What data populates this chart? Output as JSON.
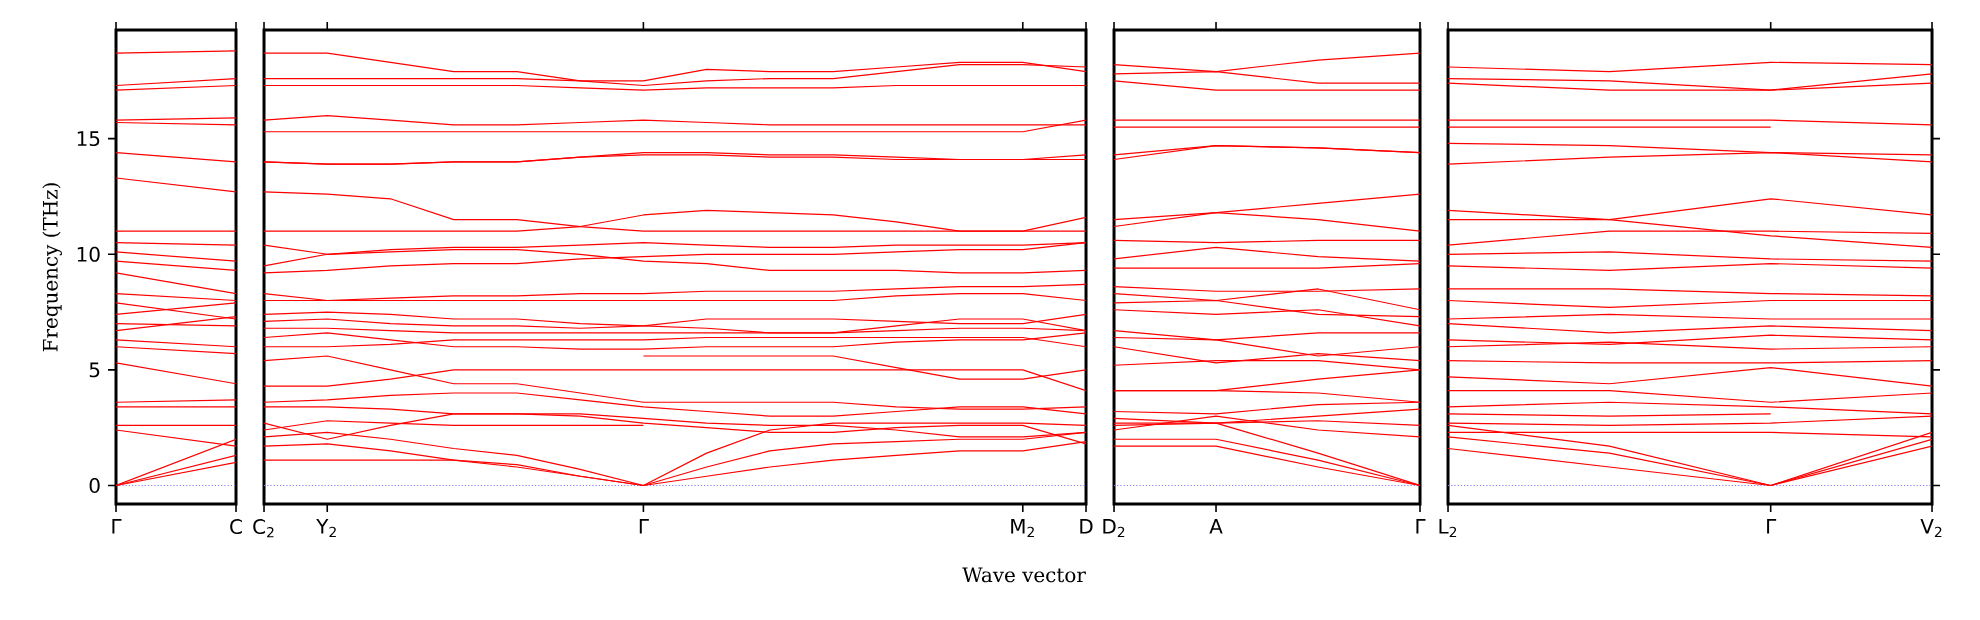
{
  "chart_data": [
    {
      "type": "line",
      "ylabel": "Frequency (THz)",
      "categories": [
        "Γ",
        "C"
      ],
      "ylim": [
        -0.8,
        19.7
      ],
      "yticks": [
        0,
        5,
        10,
        15
      ],
      "ref_lines": [
        {
          "axis": "y",
          "value": 0,
          "color": "#8080ff",
          "line_style": "dotted"
        }
      ],
      "series": [
        {
          "color": "#ff0000",
          "values": [
            18.7,
            18.8
          ]
        },
        {
          "color": "#ff0000",
          "values": [
            17.3,
            17.6
          ]
        },
        {
          "color": "#ff0000",
          "values": [
            17.1,
            17.3
          ]
        },
        {
          "color": "#ff0000",
          "values": [
            15.8,
            15.9
          ]
        },
        {
          "color": "#ff0000",
          "values": [
            15.7,
            15.6
          ]
        },
        {
          "color": "#ff0000",
          "values": [
            14.4,
            14.0
          ]
        },
        {
          "color": "#ff0000",
          "values": [
            13.3,
            12.7
          ]
        },
        {
          "color": "#ff0000",
          "values": [
            11.0,
            11.0
          ]
        },
        {
          "color": "#ff0000",
          "values": [
            10.5,
            10.4
          ]
        },
        {
          "color": "#ff0000",
          "values": [
            10.1,
            9.7
          ]
        },
        {
          "color": "#ff0000",
          "values": [
            9.7,
            9.3
          ]
        },
        {
          "color": "#ff0000",
          "values": [
            9.2,
            8.3
          ]
        },
        {
          "color": "#ff0000",
          "values": [
            8.3,
            8.0
          ]
        },
        {
          "color": "#ff0000",
          "values": [
            7.9,
            7.2
          ]
        },
        {
          "color": "#ff0000",
          "values": [
            7.4,
            7.9
          ]
        },
        {
          "color": "#ff0000",
          "values": [
            7.0,
            6.9
          ]
        },
        {
          "color": "#ff0000",
          "values": [
            6.7,
            7.3
          ]
        },
        {
          "color": "#ff0000",
          "values": [
            6.3,
            6.0
          ]
        },
        {
          "color": "#ff0000",
          "values": [
            6.0,
            5.7
          ]
        },
        {
          "color": "#ff0000",
          "values": [
            5.3,
            4.4
          ]
        },
        {
          "color": "#ff0000",
          "values": [
            3.6,
            3.7
          ]
        },
        {
          "color": "#ff0000",
          "values": [
            3.4,
            3.4
          ]
        },
        {
          "color": "#ff0000",
          "values": [
            2.6,
            2.6
          ]
        },
        {
          "color": "#ff0000",
          "values": [
            2.4,
            1.7
          ]
        },
        {
          "color": "#ff0000",
          "values": [
            0,
            2.0
          ]
        },
        {
          "color": "#ff0000",
          "values": [
            0,
            1.3
          ]
        },
        {
          "color": "#ff0000",
          "values": [
            0,
            1.0
          ]
        }
      ]
    },
    {
      "type": "line",
      "xlabel": "Wave vector",
      "tick_labels": "x",
      "categories": [
        "C$_{2}$",
        "Y$_{2}$",
        null,
        null,
        null,
        null,
        "Γ",
        null,
        null,
        null,
        null,
        null,
        "M$_{2}$",
        "D"
      ],
      "ylim": [
        -0.8,
        19.7
      ],
      "yticks": [
        0,
        5,
        10,
        15
      ],
      "ref_lines": [
        {
          "axis": "y",
          "value": 0,
          "color": "#8080ff",
          "line_style": "dotted"
        }
      ],
      "series": [
        {
          "color": "#ff0000",
          "values": [
            18.7,
            18.7,
            18.3,
            17.9,
            17.9,
            17.5,
            17.5,
            18.0,
            17.9,
            17.9,
            18.1,
            18.3,
            18.3,
            17.9
          ]
        },
        {
          "color": "#ff0000",
          "values": [
            17.6,
            17.6,
            17.6,
            17.6,
            17.6,
            17.5,
            17.3,
            17.5,
            17.6,
            17.6,
            17.9,
            18.2,
            18.2,
            18.1
          ]
        },
        {
          "color": "#ff0000",
          "values": [
            17.3,
            17.3,
            17.3,
            17.3,
            17.3,
            17.2,
            17.1,
            17.2,
            17.2,
            17.2,
            17.3,
            17.3,
            17.3,
            17.3
          ]
        },
        {
          "color": "#ff0000",
          "values": [
            15.8,
            16.0,
            15.8,
            15.6,
            15.6,
            15.7,
            15.8,
            15.7,
            15.6,
            15.6,
            15.6,
            15.6,
            15.6,
            15.6
          ]
        },
        {
          "color": "#ff0000",
          "values": [
            15.3,
            15.3,
            15.3,
            15.3,
            15.3,
            15.3,
            15.3,
            15.3,
            15.3,
            15.3,
            15.3,
            15.3,
            15.3,
            15.8
          ]
        },
        {
          "color": "#ff0000",
          "values": [
            14.0,
            13.9,
            13.9,
            14.0,
            14.0,
            14.2,
            14.4,
            14.4,
            14.3,
            14.3,
            14.2,
            14.1,
            14.1,
            14.3
          ]
        },
        {
          "color": "#ff0000",
          "values": [
            14.0,
            13.9,
            13.9,
            14.0,
            14.0,
            14.2,
            14.3,
            14.3,
            14.2,
            14.2,
            14.1,
            14.1,
            14.1,
            14.1
          ]
        },
        {
          "color": "#ff0000",
          "values": [
            11.0,
            11.0,
            11.0,
            11.0,
            11.0,
            11.2,
            11.7,
            11.9,
            11.8,
            11.7,
            11.4,
            11.0,
            11.0,
            11.6
          ]
        },
        {
          "color": "#ff0000",
          "values": [
            12.7,
            12.6,
            12.4,
            11.5,
            11.5,
            11.2,
            11.0,
            11.0,
            11.0,
            11.0,
            11.0,
            11.0,
            11.0,
            11.0
          ]
        },
        {
          "color": "#ff0000",
          "values": [
            10.4,
            10.0,
            10.2,
            10.3,
            10.3,
            10.4,
            10.5,
            10.4,
            10.3,
            10.3,
            10.4,
            10.4,
            10.4,
            10.5
          ]
        },
        {
          "color": "#ff0000",
          "values": [
            9.2,
            9.3,
            9.5,
            9.6,
            9.6,
            9.8,
            9.9,
            10.0,
            10.0,
            10.0,
            10.1,
            10.2,
            10.2,
            10.5
          ]
        },
        {
          "color": "#ff0000",
          "values": [
            9.5,
            10.0,
            10.1,
            10.2,
            10.2,
            10.0,
            9.7,
            9.6,
            9.3,
            9.3,
            9.3,
            9.2,
            9.2,
            9.3
          ]
        },
        {
          "color": "#ff0000",
          "values": [
            8.3,
            8.0,
            8.1,
            8.2,
            8.2,
            8.3,
            8.3,
            8.4,
            8.4,
            8.4,
            8.5,
            8.6,
            8.6,
            8.7
          ]
        },
        {
          "color": "#ff0000",
          "values": [
            8.0,
            8.0,
            8.0,
            8.0,
            8.0,
            8.0,
            8.0,
            8.0,
            8.0,
            8.0,
            8.2,
            8.3,
            8.3,
            8.0
          ]
        },
        {
          "color": "#ff0000",
          "values": [
            7.1,
            7.2,
            7.0,
            6.9,
            6.9,
            6.8,
            6.9,
            7.2,
            7.2,
            7.2,
            7.1,
            7.0,
            7.0,
            7.4
          ]
        },
        {
          "color": "#ff0000",
          "values": [
            7.4,
            7.5,
            7.4,
            7.2,
            7.2,
            7.0,
            6.9,
            6.8,
            6.6,
            6.6,
            6.9,
            7.2,
            7.2,
            6.7
          ]
        },
        {
          "color": "#ff0000",
          "values": [
            6.8,
            6.8,
            6.7,
            6.6,
            6.6,
            6.6,
            6.6,
            6.6,
            6.6,
            6.6,
            6.7,
            6.8,
            6.8,
            6.7
          ]
        },
        {
          "color": "#ff0000",
          "values": [
            6.0,
            6.0,
            6.1,
            6.3,
            6.3,
            6.3,
            6.3,
            6.4,
            6.4,
            6.4,
            6.4,
            6.4,
            6.4,
            6.0
          ]
        },
        {
          "color": "#ff0000",
          "values": [
            6.4,
            6.6,
            6.3,
            6.0,
            6.0,
            5.9,
            5.9,
            6.0,
            6.0,
            6.0,
            6.2,
            6.3,
            6.3,
            6.6
          ]
        },
        {
          "color": "#ff0000",
          "values": [
            4.3,
            4.3,
            4.6,
            5.0,
            5.0,
            5.0,
            5.0,
            5.0,
            5.0,
            5.0,
            5.0,
            5.0,
            5.0,
            4.1
          ]
        },
        {
          "color": "#ff0000",
          "values": [
            null,
            null,
            null,
            null,
            null,
            null,
            5.6,
            5.6,
            5.6,
            5.6,
            5.1,
            4.6,
            4.6,
            5.0
          ]
        },
        {
          "color": "#ff0000",
          "values": [
            5.4,
            5.6,
            5.0,
            4.4,
            4.4,
            4.0,
            3.6,
            3.6,
            3.6,
            3.6,
            3.4,
            3.3,
            3.3,
            3.4
          ]
        },
        {
          "color": "#ff0000",
          "values": [
            3.6,
            3.7,
            3.9,
            4.0,
            4.0,
            3.7,
            3.4,
            3.2,
            3.0,
            3.0,
            3.2,
            3.4,
            3.4,
            3.1
          ]
        },
        {
          "color": "#ff0000",
          "values": [
            3.4,
            3.4,
            3.3,
            3.1,
            3.1,
            3.1,
            2.9,
            2.7,
            2.6,
            2.6,
            2.4,
            2.1,
            2.1,
            2.3
          ]
        },
        {
          "color": "#ff0000",
          "values": [
            2.7,
            2.0,
            2.6,
            3.1,
            3.1,
            3.0,
            2.7,
            2.5,
            2.3,
            2.3,
            2.5,
            2.6,
            2.6,
            1.8
          ]
        },
        {
          "color": "#ff0000",
          "values": [
            2.4,
            2.8,
            2.7,
            2.6,
            2.6,
            2.6,
            2.6,
            null,
            null,
            null,
            null,
            null,
            null,
            null
          ]
        },
        {
          "color": "#ff0000",
          "values": [
            2.1,
            2.3,
            2.0,
            1.6,
            1.3,
            0.7,
            0,
            1.4,
            2.4,
            2.7,
            2.7,
            2.7,
            2.7,
            2.6
          ]
        },
        {
          "color": "#ff0000",
          "values": [
            1.7,
            1.8,
            1.5,
            1.1,
            0.8,
            0.4,
            0,
            0.8,
            1.5,
            1.8,
            1.9,
            2.0,
            2.0,
            2.3
          ]
        },
        {
          "color": "#ff0000",
          "values": [
            1.1,
            1.1,
            1.1,
            1.1,
            0.9,
            0.4,
            0,
            0.4,
            0.8,
            1.1,
            1.3,
            1.5,
            1.5,
            1.9
          ]
        }
      ]
    },
    {
      "type": "line",
      "tick_labels": "x",
      "categories": [
        "D$_{2}$",
        "A",
        null,
        "Γ"
      ],
      "ylim": [
        -0.8,
        19.7
      ],
      "yticks": [
        0,
        5,
        10,
        15
      ],
      "ref_lines": [
        {
          "axis": "y",
          "value": 0,
          "color": "#8080ff",
          "line_style": "dotted"
        }
      ],
      "series": [
        {
          "color": "#ff0000",
          "values": [
            18.2,
            17.9,
            18.4,
            18.7
          ]
        },
        {
          "color": "#ff0000",
          "values": [
            17.8,
            17.9,
            17.4,
            17.4
          ]
        },
        {
          "color": "#ff0000",
          "values": [
            17.5,
            17.1,
            17.1,
            17.1
          ]
        },
        {
          "color": "#ff0000",
          "values": [
            15.8,
            15.8,
            15.8,
            15.8
          ]
        },
        {
          "color": "#ff0000",
          "values": [
            15.5,
            15.5,
            15.5,
            15.5
          ]
        },
        {
          "color": "#ff0000",
          "values": [
            14.3,
            14.7,
            14.6,
            14.4
          ]
        },
        {
          "color": "#ff0000",
          "values": [
            14.1,
            14.7,
            14.6,
            14.4
          ]
        },
        {
          "color": "#ff0000",
          "values": [
            11.5,
            11.8,
            12.2,
            12.6
          ]
        },
        {
          "color": "#ff0000",
          "values": [
            11.2,
            11.8,
            11.5,
            11.0
          ]
        },
        {
          "color": "#ff0000",
          "values": [
            10.6,
            10.5,
            10.6,
            10.6
          ]
        },
        {
          "color": "#ff0000",
          "values": [
            9.8,
            10.3,
            9.9,
            9.7
          ]
        },
        {
          "color": "#ff0000",
          "values": [
            9.4,
            9.4,
            9.4,
            9.6
          ]
        },
        {
          "color": "#ff0000",
          "values": [
            8.6,
            8.4,
            8.4,
            8.5
          ]
        },
        {
          "color": "#ff0000",
          "values": [
            8.3,
            8.0,
            8.5,
            7.6
          ]
        },
        {
          "color": "#ff0000",
          "values": [
            7.9,
            8.0,
            7.4,
            7.3
          ]
        },
        {
          "color": "#ff0000",
          "values": [
            7.6,
            7.4,
            7.6,
            6.9
          ]
        },
        {
          "color": "#ff0000",
          "values": [
            6.7,
            6.3,
            6.6,
            6.6
          ]
        },
        {
          "color": "#ff0000",
          "values": [
            6.4,
            6.3,
            5.6,
            6.0
          ]
        },
        {
          "color": "#ff0000",
          "values": [
            6.0,
            5.3,
            5.7,
            5.4
          ]
        },
        {
          "color": "#ff0000",
          "values": [
            5.2,
            5.4,
            5.4,
            5.0
          ]
        },
        {
          "color": "#ff0000",
          "values": [
            4.1,
            4.1,
            4.6,
            5.0
          ]
        },
        {
          "color": "#ff0000",
          "values": [
            4.1,
            4.1,
            4.0,
            3.6
          ]
        },
        {
          "color": "#ff0000",
          "values": [
            3.2,
            3.1,
            3.5,
            3.6
          ]
        },
        {
          "color": "#ff0000",
          "values": [
            2.9,
            2.7,
            3.0,
            3.3
          ]
        },
        {
          "color": "#ff0000",
          "values": [
            2.7,
            2.7,
            2.8,
            2.6
          ]
        },
        {
          "color": "#ff0000",
          "values": [
            2.4,
            3.0,
            2.4,
            2.1
          ]
        },
        {
          "color": "#ff0000",
          "values": [
            2.0,
            2.0,
            1.1,
            0
          ]
        },
        {
          "color": "#ff0000",
          "values": [
            2.6,
            2.7,
            1.4,
            0
          ]
        },
        {
          "color": "#ff0000",
          "values": [
            1.7,
            1.7,
            0.8,
            0
          ]
        }
      ]
    },
    {
      "type": "line",
      "tick_labels": "x",
      "categories": [
        "L$_{2}$",
        null,
        "Γ",
        "V$_{2}$"
      ],
      "ylim": [
        -0.8,
        19.7
      ],
      "yticks": [
        0,
        5,
        10,
        15
      ],
      "ref_lines": [
        {
          "axis": "y",
          "value": 0,
          "color": "#8080ff",
          "line_style": "dotted"
        }
      ],
      "series": [
        {
          "color": "#ff0000",
          "values": [
            18.1,
            17.9,
            18.3,
            18.2
          ]
        },
        {
          "color": "#ff0000",
          "values": [
            17.6,
            17.5,
            17.1,
            17.8
          ]
        },
        {
          "color": "#ff0000",
          "values": [
            17.4,
            17.1,
            17.1,
            17.4
          ]
        },
        {
          "color": "#ff0000",
          "values": [
            15.8,
            15.8,
            15.8,
            15.6
          ]
        },
        {
          "color": "#ff0000",
          "values": [
            15.5,
            15.5,
            15.5,
            null
          ]
        },
        {
          "color": "#ff0000",
          "values": [
            14.8,
            14.7,
            14.4,
            14.3
          ]
        },
        {
          "color": "#ff0000",
          "values": [
            13.9,
            14.2,
            14.4,
            14.0
          ]
        },
        {
          "color": "#ff0000",
          "values": [
            11.9,
            11.5,
            12.4,
            11.7
          ]
        },
        {
          "color": "#ff0000",
          "values": [
            11.5,
            11.5,
            10.8,
            10.3
          ]
        },
        {
          "color": "#ff0000",
          "values": [
            10.4,
            11.0,
            11.0,
            10.9
          ]
        },
        {
          "color": "#ff0000",
          "values": [
            10.0,
            10.1,
            9.8,
            9.7
          ]
        },
        {
          "color": "#ff0000",
          "values": [
            9.5,
            9.3,
            9.6,
            9.4
          ]
        },
        {
          "color": "#ff0000",
          "values": [
            8.5,
            8.5,
            8.3,
            8.2
          ]
        },
        {
          "color": "#ff0000",
          "values": [
            8.0,
            7.7,
            8.0,
            8.0
          ]
        },
        {
          "color": "#ff0000",
          "values": [
            7.2,
            7.4,
            7.2,
            7.2
          ]
        },
        {
          "color": "#ff0000",
          "values": [
            7.0,
            6.6,
            6.9,
            6.7
          ]
        },
        {
          "color": "#ff0000",
          "values": [
            6.3,
            6.1,
            6.5,
            6.3
          ]
        },
        {
          "color": "#ff0000",
          "values": [
            6.0,
            6.2,
            5.9,
            6.0
          ]
        },
        {
          "color": "#ff0000",
          "values": [
            5.4,
            5.3,
            5.3,
            5.4
          ]
        },
        {
          "color": "#ff0000",
          "values": [
            4.7,
            4.4,
            5.1,
            4.3
          ]
        },
        {
          "color": "#ff0000",
          "values": [
            4.1,
            4.1,
            3.6,
            4.0
          ]
        },
        {
          "color": "#ff0000",
          "values": [
            3.4,
            3.6,
            3.4,
            3.1
          ]
        },
        {
          "color": "#ff0000",
          "values": [
            3.1,
            3.0,
            3.1,
            null
          ]
        },
        {
          "color": "#ff0000",
          "values": [
            2.7,
            2.6,
            2.7,
            3.0
          ]
        },
        {
          "color": "#ff0000",
          "values": [
            2.3,
            2.3,
            2.3,
            2.1
          ]
        },
        {
          "color": "#ff0000",
          "values": [
            2.6,
            1.7,
            0,
            2.3
          ]
        },
        {
          "color": "#ff0000",
          "values": [
            2.1,
            1.4,
            0,
            2.0
          ]
        },
        {
          "color": "#ff0000",
          "values": [
            1.6,
            0.8,
            0,
            1.7
          ]
        }
      ]
    }
  ]
}
